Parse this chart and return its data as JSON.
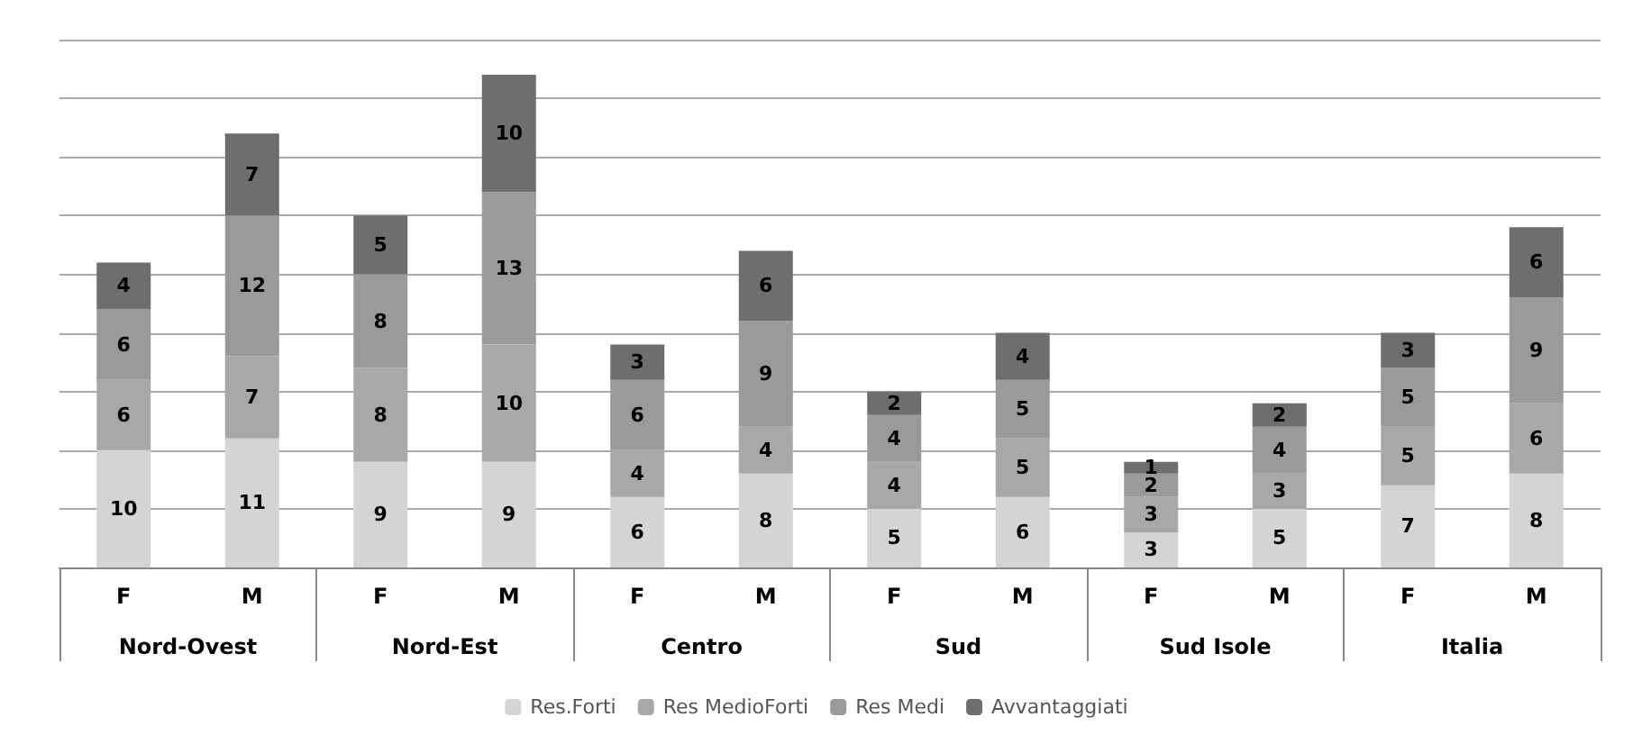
{
  "chart_data": {
    "type": "bar",
    "stacked": true,
    "data_labels": true,
    "grid": "y",
    "legend": "bottom",
    "categories": [
      "F",
      "M",
      "F",
      "M",
      "F",
      "M",
      "F",
      "M",
      "F",
      "M",
      "F",
      "M"
    ],
    "annotations": [
      "Nord-Ovest",
      "Nord-Est",
      "Centro",
      "Sud",
      "Sud Isole",
      "Italia"
    ],
    "ylim": [
      0,
      45
    ],
    "yticks": [
      {
        "value": 0,
        "label": null
      },
      {
        "value": 5,
        "label": null
      },
      {
        "value": 10,
        "label": null
      },
      {
        "value": 15,
        "label": null
      },
      {
        "value": 20,
        "label": null
      },
      {
        "value": 25,
        "label": null
      },
      {
        "value": 30,
        "label": null
      },
      {
        "value": 35,
        "label": null
      },
      {
        "value": 40,
        "label": null
      },
      {
        "value": 45,
        "label": null
      }
    ],
    "series": [
      {
        "name": "Res.Forti",
        "color": "#d4d4d4",
        "values": [
          10,
          11,
          9,
          9,
          6,
          8,
          5,
          6,
          3,
          5,
          7,
          8
        ]
      },
      {
        "name": "Res MedioForti",
        "color": "#a8a8a8",
        "values": [
          6,
          7,
          8,
          10,
          4,
          4,
          4,
          5,
          3,
          3,
          5,
          6
        ]
      },
      {
        "name": "Res Medi",
        "color": "#9a9a9a",
        "values": [
          6,
          12,
          8,
          13,
          6,
          9,
          4,
          5,
          2,
          4,
          5,
          9
        ]
      },
      {
        "name": "Avvantaggiati",
        "color": "#6e6e6e",
        "values": [
          4,
          7,
          5,
          10,
          3,
          6,
          2,
          4,
          1,
          2,
          3,
          6
        ]
      }
    ]
  }
}
